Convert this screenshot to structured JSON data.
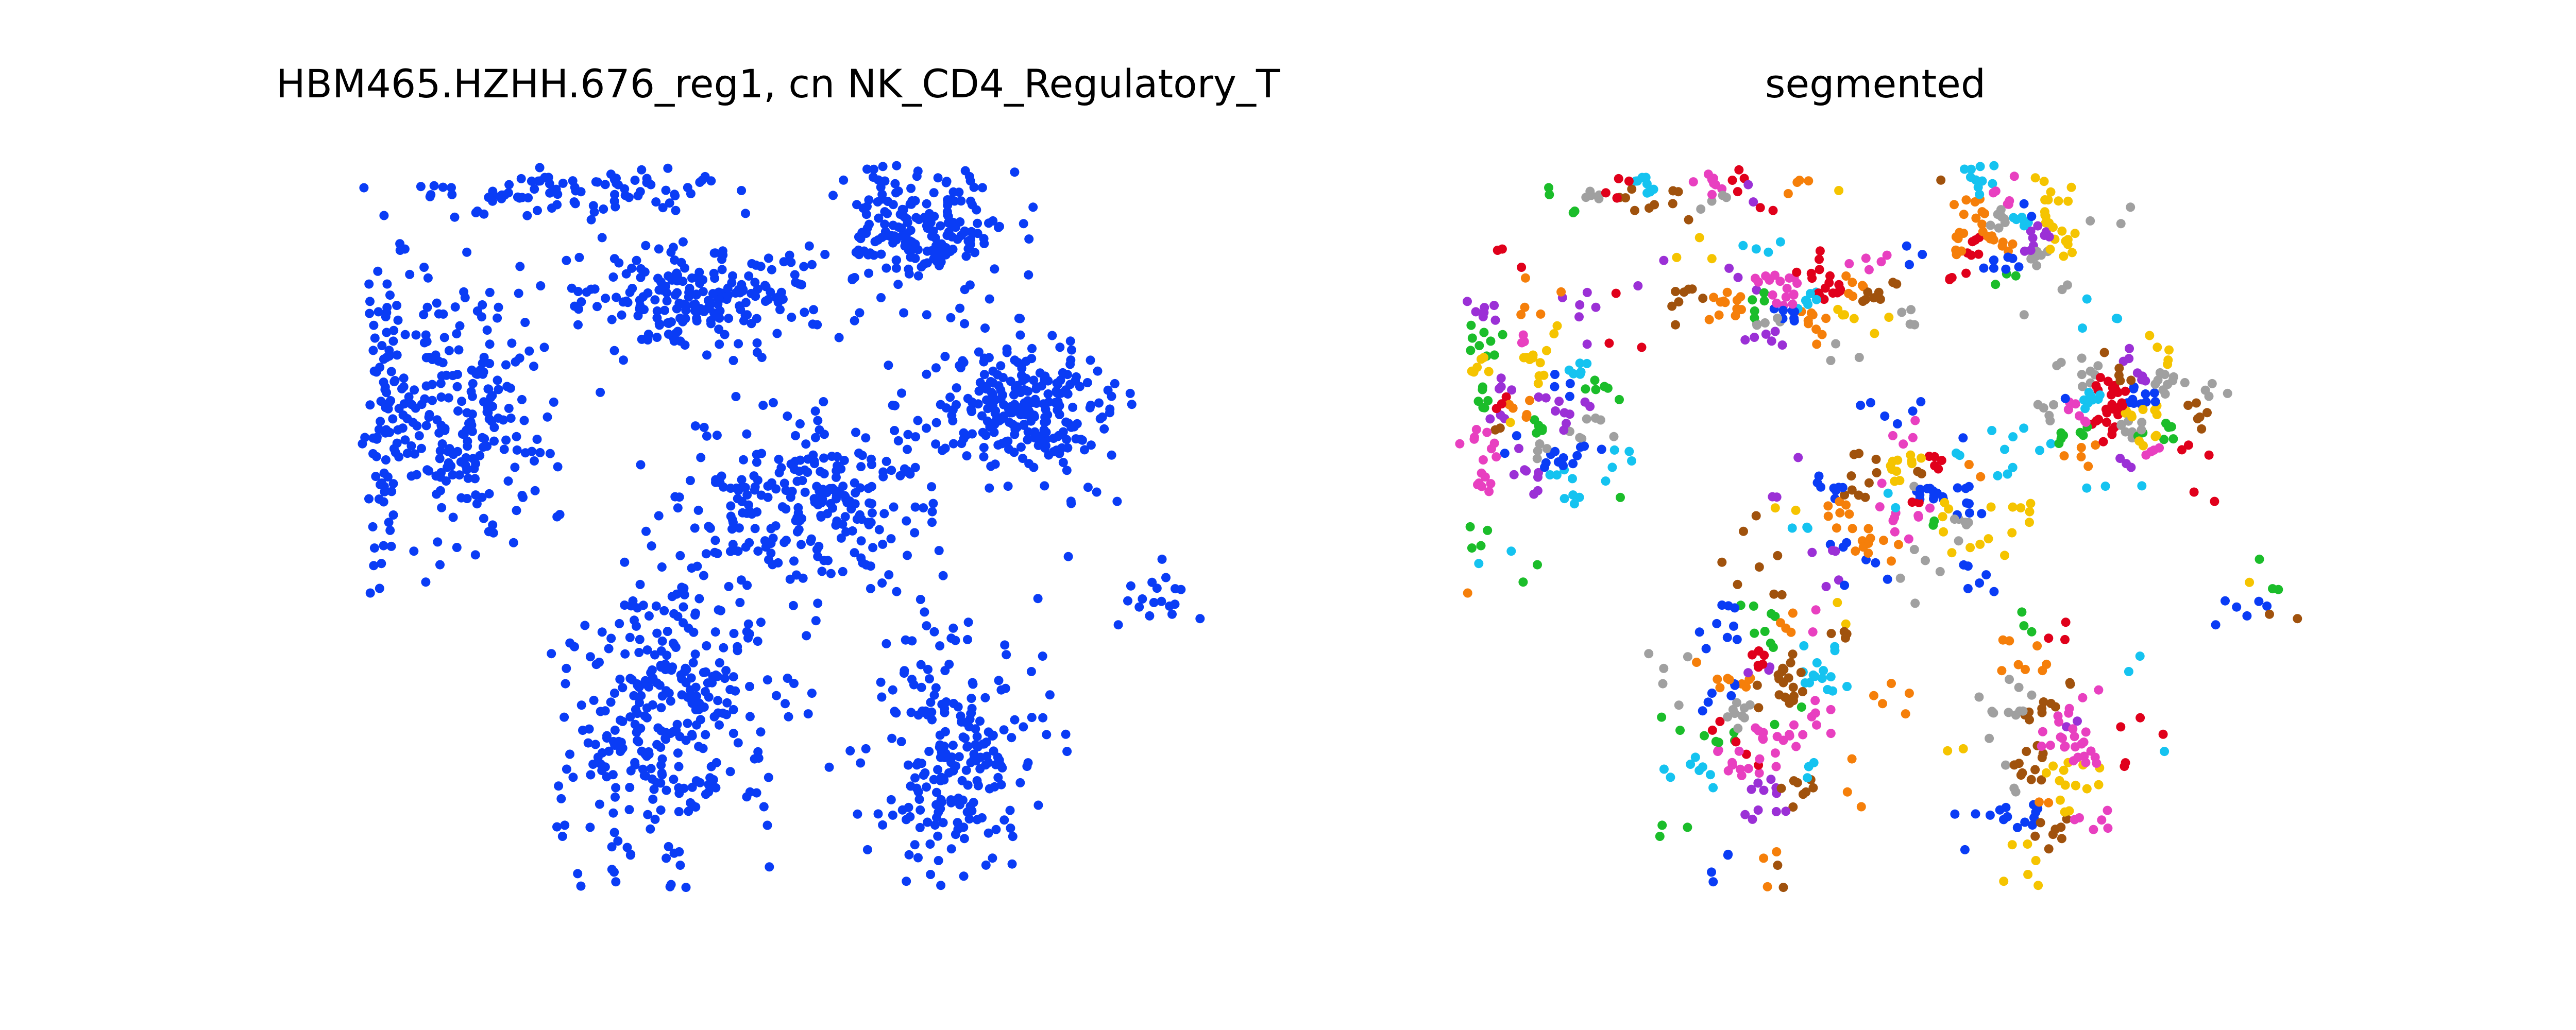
{
  "chart_data": [
    {
      "type": "scatter",
      "title": "HBM465.HZHH.676_reg1, cn NK_CD4_Regulatory_T",
      "axes_visible": false,
      "grid": false,
      "legend": "none",
      "point_color": "#0a3cf5",
      "description": "spatial map of cells in the tissue region; all points one colour",
      "regions": [
        {
          "label": "upper-left band",
          "cx": 0.24,
          "cy": 0.05,
          "spread": [
            0.19,
            0.035
          ],
          "n": 95
        },
        {
          "label": "top-center arc",
          "cx": 0.4,
          "cy": 0.19,
          "spread": [
            0.14,
            0.07
          ],
          "n": 210
        },
        {
          "label": "top-right block",
          "cx": 0.67,
          "cy": 0.1,
          "spread": [
            0.1,
            0.09
          ],
          "n": 200
        },
        {
          "label": "right cluster",
          "cx": 0.79,
          "cy": 0.34,
          "spread": [
            0.11,
            0.09
          ],
          "n": 260
        },
        {
          "label": "left mass",
          "cx": 0.12,
          "cy": 0.37,
          "spread": [
            0.1,
            0.17
          ],
          "n": 220
        },
        {
          "label": "left column",
          "cx": 0.03,
          "cy": 0.3,
          "spread": [
            0.025,
            0.25
          ],
          "n": 80
        },
        {
          "label": "center mass",
          "cx": 0.54,
          "cy": 0.47,
          "spread": [
            0.16,
            0.12
          ],
          "n": 260
        },
        {
          "label": "ring cluster",
          "cx": 0.37,
          "cy": 0.77,
          "spread": [
            0.12,
            0.2
          ],
          "n": 330
        },
        {
          "label": "lower diagonal band",
          "cx": 0.7,
          "cy": 0.82,
          "spread": [
            0.1,
            0.17
          ],
          "n": 230
        },
        {
          "label": "far right sparse",
          "cx": 0.94,
          "cy": 0.6,
          "spread": [
            0.06,
            0.04
          ],
          "n": 18
        }
      ]
    },
    {
      "type": "scatter",
      "title": "segmented",
      "axes_visible": false,
      "grid": false,
      "legend": "none",
      "description": "same spatial map split into small segments, each segment drawn in one colour from a repeating palette",
      "palette": [
        "#9b30d6",
        "#f5c400",
        "#e0001b",
        "#0a3cf5",
        "#a0a0a0",
        "#15c3f0",
        "#e840c0",
        "#f57f0a",
        "#1bbd2a",
        "#a0520d"
      ],
      "segment_count": 260
    }
  ]
}
